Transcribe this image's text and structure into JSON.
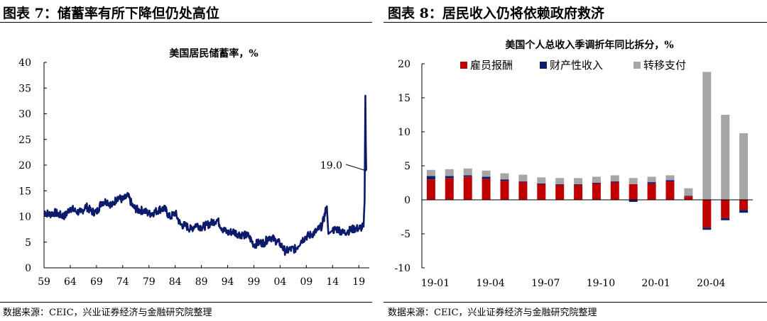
{
  "left": {
    "panel_title": "图表 7：储蓄率有所下降但仍处高位",
    "source": "数据来源：CEIC，兴业证券经济与金融研究院整理"
  },
  "right": {
    "panel_title": "图表 8：居民收入仍将依赖政府救济",
    "source": "数据来源：CEIC，兴业证券经济与金融研究院整理"
  },
  "chart_data": [
    {
      "type": "line",
      "title": "美国居民储蓄率，%",
      "x_tick_labels": [
        "59",
        "64",
        "69",
        "74",
        "79",
        "84",
        "89",
        "94",
        "99",
        "04",
        "09",
        "14",
        "19"
      ],
      "x_ticks": [
        1959,
        1964,
        1969,
        1974,
        1979,
        1984,
        1989,
        1994,
        1999,
        2004,
        2009,
        2014,
        2019
      ],
      "xlim": [
        1959,
        2021
      ],
      "ylim": [
        0,
        40
      ],
      "y_ticks": [
        0,
        5,
        10,
        15,
        20,
        25,
        30,
        35,
        40
      ],
      "grid": false,
      "annotation": "19.0",
      "x": [
        1959,
        1960,
        1961,
        1962,
        1963,
        1964,
        1965,
        1966,
        1967,
        1968,
        1969,
        1970,
        1971,
        1972,
        1973,
        1974,
        1975,
        1976,
        1977,
        1978,
        1979,
        1980,
        1981,
        1982,
        1983,
        1984,
        1985,
        1986,
        1987,
        1988,
        1989,
        1990,
        1991,
        1992,
        1993,
        1994,
        1995,
        1996,
        1997,
        1998,
        1999,
        2000,
        2001,
        2002,
        2003,
        2004,
        2005,
        2006,
        2007,
        2008,
        2009,
        2010,
        2011,
        2012,
        2012.9,
        2013.2,
        2014,
        2015,
        2016,
        2017,
        2018,
        2019,
        2019.9,
        2020.1,
        2020.25,
        2020.33,
        2020.42,
        2020.5
      ],
      "y": [
        11.0,
        10.4,
        10.8,
        10.3,
        10.1,
        11.7,
        11.0,
        10.8,
        12.0,
        11.0,
        10.8,
        12.8,
        13.0,
        12.1,
        13.8,
        13.2,
        14.0,
        11.8,
        11.2,
        11.2,
        10.5,
        10.8,
        11.4,
        11.5,
        9.8,
        10.8,
        8.4,
        8.2,
        7.5,
        8.5,
        7.9,
        8.3,
        8.8,
        9.4,
        7.6,
        6.8,
        7.1,
        6.6,
        6.4,
        6.2,
        4.5,
        4.9,
        4.9,
        6.1,
        5.4,
        4.7,
        3.2,
        3.6,
        3.7,
        5.3,
        6.1,
        6.5,
        7.2,
        8.2,
        12.0,
        6.6,
        7.3,
        7.6,
        6.8,
        7.2,
        7.6,
        7.7,
        8.0,
        13.0,
        33.5,
        24.0,
        19.0,
        19.0
      ]
    },
    {
      "type": "bar",
      "stacked": true,
      "title": "美国个人总收入季调折年同比拆分，%",
      "x_tick_labels": [
        "19-01",
        "19-04",
        "19-07",
        "19-10",
        "20-01",
        "20-04"
      ],
      "categories": [
        "19-01",
        "19-02",
        "19-03",
        "19-04",
        "19-05",
        "19-06",
        "19-07",
        "19-08",
        "19-09",
        "19-10",
        "19-11",
        "19-12",
        "20-01",
        "20-02",
        "20-03",
        "20-04",
        "20-05",
        "20-06"
      ],
      "ylim": [
        -10,
        20
      ],
      "y_ticks": [
        -10,
        -5,
        0,
        5,
        10,
        15,
        20
      ],
      "legend_position": "top",
      "series": [
        {
          "name": "雇员报酬",
          "color": "#c00000",
          "values": [
            3.0,
            3.2,
            3.4,
            3.1,
            2.8,
            2.6,
            2.3,
            2.2,
            2.2,
            2.4,
            2.6,
            2.3,
            2.4,
            2.7,
            0.5,
            -4.1,
            -2.7,
            -1.5
          ]
        },
        {
          "name": "财产性收入",
          "color": "#0a1f6e",
          "values": [
            0.5,
            0.3,
            0.2,
            0.3,
            0.2,
            0.1,
            0.1,
            0.1,
            0.1,
            0.1,
            0.1,
            -0.3,
            0.2,
            0.2,
            0.1,
            -0.3,
            -0.3,
            -0.4
          ]
        },
        {
          "name": "转移支付",
          "color": "#a6a6a6",
          "values": [
            0.9,
            1.0,
            1.0,
            0.9,
            0.9,
            1.0,
            0.9,
            0.9,
            0.9,
            0.9,
            0.9,
            0.9,
            0.8,
            0.7,
            1.1,
            18.8,
            12.5,
            9.8
          ]
        }
      ]
    }
  ]
}
